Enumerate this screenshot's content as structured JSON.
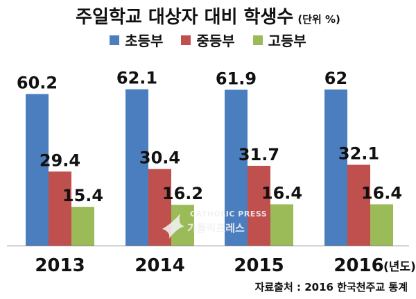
{
  "chart_data": {
    "type": "bar",
    "title": "주일학교 대상자 대비 학생수",
    "unit_note": "(단위 %)",
    "categories": [
      "2013",
      "2014",
      "2015",
      "2016"
    ],
    "x_unit": "(년도)",
    "series": [
      {
        "name": "초등부",
        "color": "#4a7ebf",
        "values": [
          60.2,
          62.1,
          61.9,
          62
        ]
      },
      {
        "name": "중등부",
        "color": "#c0504d",
        "values": [
          29.4,
          30.4,
          31.7,
          32.1
        ]
      },
      {
        "name": "고등부",
        "color": "#9bbb59",
        "values": [
          15.4,
          16.2,
          16.4,
          16.4
        ]
      }
    ],
    "value_labels": [
      [
        "60.2",
        "62.1",
        "61.9",
        "62"
      ],
      [
        "29.4",
        "30.4",
        "31.7",
        "32.1"
      ],
      [
        "15.4",
        "16.2",
        "16.4",
        "16.4"
      ]
    ],
    "ylim": [
      0,
      70
    ],
    "grid": false,
    "legend_position": "top",
    "source": "자료출처 : 2016 한국천주교 통계",
    "watermark": {
      "line1": "CATHOLIC PRESS",
      "line2": "가톨릭프레스"
    }
  }
}
